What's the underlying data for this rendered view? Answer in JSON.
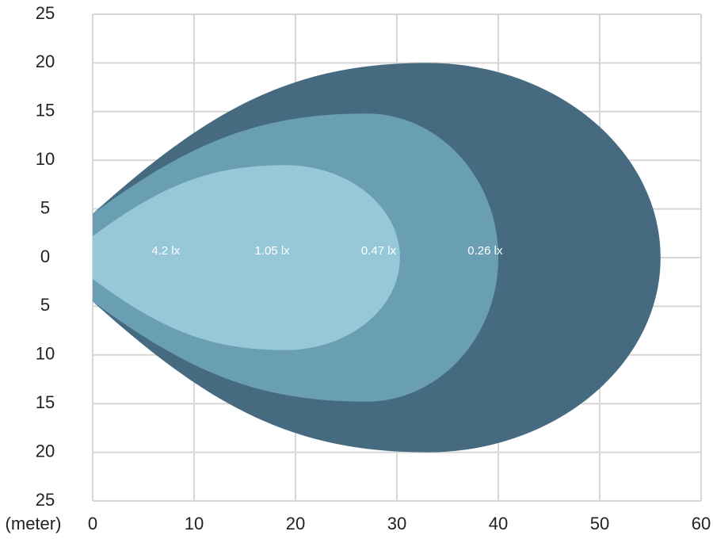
{
  "chart_data": {
    "type": "beam",
    "x_unit_label": "(meter)",
    "xlim": [
      0,
      60
    ],
    "xticks": [
      0,
      10,
      20,
      30,
      40,
      50,
      60
    ],
    "ylim": [
      -25,
      25
    ],
    "yticks": [
      {
        "value": -25,
        "label": "25"
      },
      {
        "value": -20,
        "label": "20"
      },
      {
        "value": -15,
        "label": "15"
      },
      {
        "value": -10,
        "label": "10"
      },
      {
        "value": -5,
        "label": "5"
      },
      0,
      5,
      10,
      15,
      20,
      25
    ],
    "grid": true,
    "series": [
      {
        "name": "0.26 lx",
        "color": "#466b80",
        "reach": 56,
        "half_width": 20,
        "peak_at": 33,
        "base_width": 4.5
      },
      {
        "name": "0.47 lx",
        "color": "#6a9fb3",
        "reach": 40,
        "half_width": 14.8,
        "peak_at": 27,
        "base_width": 4.5
      },
      {
        "name": "1.05 lx",
        "color": "#96c8d8",
        "reach": 30.3,
        "half_width": 9.5,
        "peak_at": 19,
        "base_width": 2.2
      }
    ],
    "annotations": [
      "4.2 lx",
      "1.05 lx",
      "0.47 lx",
      "0.26 lx"
    ]
  }
}
